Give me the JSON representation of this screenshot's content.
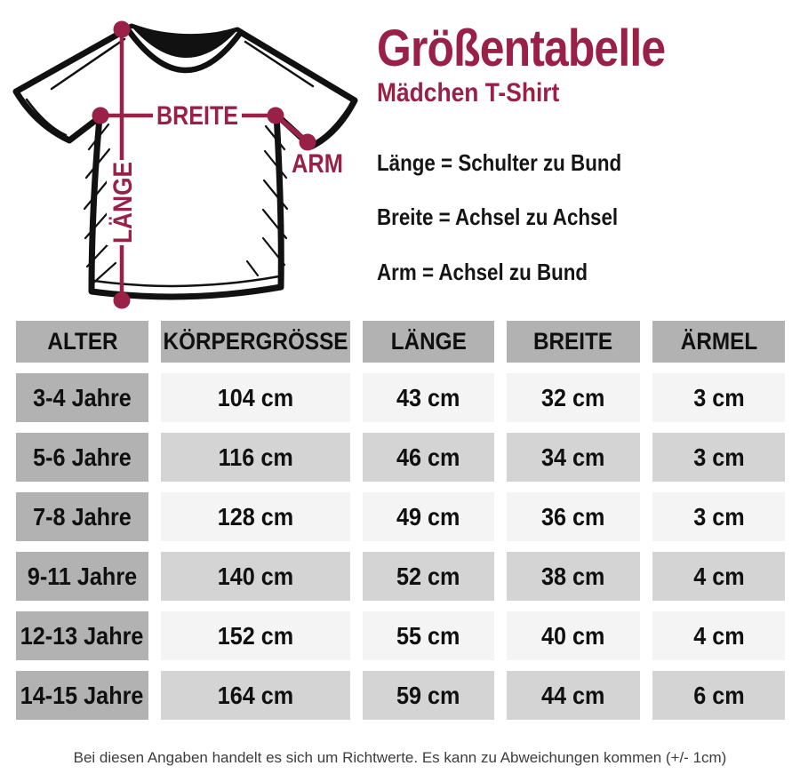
{
  "header": {
    "title": "Größentabelle",
    "subtitle": "Mädchen T-Shirt"
  },
  "legend": [
    "Länge = Schulter zu Bund",
    "Breite = Achsel zu Achsel",
    "Arm = Achsel zu Bund"
  ],
  "diagram": {
    "labels": {
      "laenge": "LÄNGE",
      "breite": "BREITE",
      "arm": "ARM"
    }
  },
  "chart_data": {
    "type": "table",
    "title": "Größentabelle",
    "subtitle": "Mädchen T-Shirt",
    "columns": [
      "ALTER",
      "KÖRPERGRÖSSE",
      "LÄNGE",
      "BREITE",
      "ÄRMEL"
    ],
    "rows": [
      [
        "3-4 Jahre",
        "104 cm",
        "43 cm",
        "32 cm",
        "3 cm"
      ],
      [
        "5-6 Jahre",
        "116 cm",
        "46 cm",
        "34 cm",
        "3 cm"
      ],
      [
        "7-8 Jahre",
        "128 cm",
        "49 cm",
        "36 cm",
        "3 cm"
      ],
      [
        "9-11 Jahre",
        "140 cm",
        "52 cm",
        "38 cm",
        "4 cm"
      ],
      [
        "12-13 Jahre",
        "152 cm",
        "55 cm",
        "40 cm",
        "4 cm"
      ],
      [
        "14-15 Jahre",
        "164 cm",
        "59 cm",
        "44 cm",
        "6 cm"
      ]
    ]
  },
  "footer": {
    "note": "Bei diesen Angaben handelt es sich um Richtwerte. Es kann zu Abweichungen kommen (+/- 1cm)"
  },
  "colors": {
    "accent": "#992047",
    "shirt_outline": "#111111",
    "table_header_bg": "#b2b2b2",
    "row_light": "#f4f4f4",
    "row_dark": "#d4d4d4",
    "footer_text": "#3d3d3d"
  }
}
